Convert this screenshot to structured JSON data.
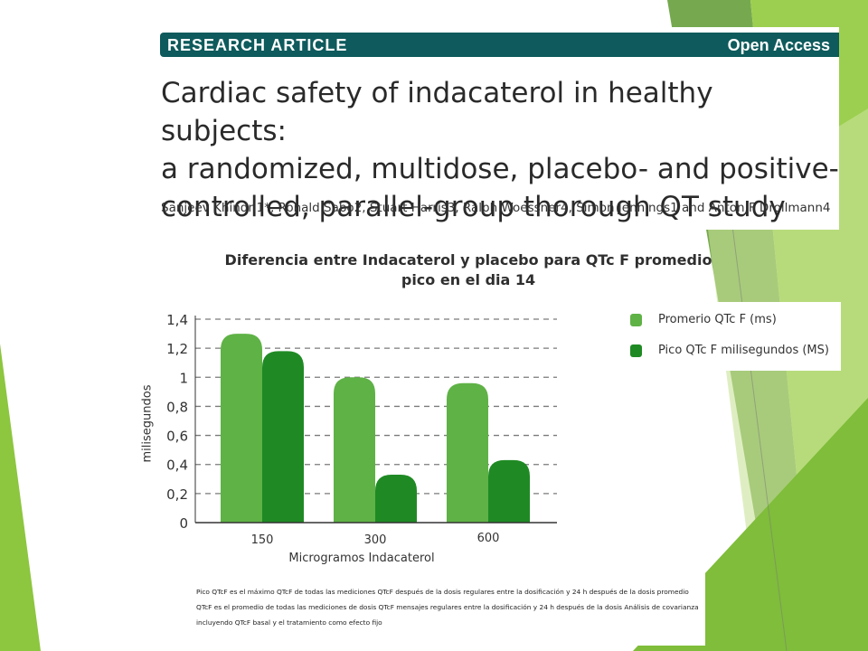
{
  "article": {
    "badge": "RESEARCH ARTICLE",
    "access": "Open Access",
    "title_lines": [
      "Cardiac safety of indacaterol in healthy subjects:",
      "a randomized, multidose, placebo- and positive-",
      "controlled, parallel-group thorough QT study"
    ],
    "authors": "Sanjeev Khindri1*, Ronald Sabo2, Stuart Harris3, Ralph Woessner4, Simon Jennings1 and Anton F Drollmann4",
    "header_color": "#0e5a5c"
  },
  "chart_data": {
    "type": "bar",
    "title_lines": [
      "Diferencia entre Indacaterol y placebo para QTc F promedio",
      "pico en el dia 14"
    ],
    "xlabel": "Microgramos Indacaterol",
    "ylabel": "milisegundos",
    "categories": [
      "150",
      "300",
      "600"
    ],
    "ylim": [
      0,
      1.4
    ],
    "yticks": [
      "0",
      "0,2",
      "0,4",
      "0,6",
      "0,8",
      "1",
      "1,2",
      "1,4"
    ],
    "grid": "dashed horizontal",
    "legend_position": "right",
    "series": [
      {
        "name": "Promerio QTc F (ms)",
        "values": [
          1.3,
          1.0,
          0.96
        ],
        "color": "#5fb246"
      },
      {
        "name": "Pico QTc F milisegundos (MS)",
        "values": [
          1.18,
          0.33,
          0.43
        ],
        "color": "#1f8a24"
      }
    ]
  },
  "footnote": [
    "Pico QTcF es el máximo QTcF de todas las mediciones QTcF después de la dosis regulares entre la dosificación y 24 h después de la dosis promedio",
    "QTcF es el promedio de todas las mediciones de dosis QTcF mensajes regulares entre la dosificación y 24 h después de la dosis Análisis de covarianza",
    "incluyendo QTcF basal y el tratamiento como efecto fijo"
  ],
  "decor": {
    "accent_light": "#8dc63f",
    "accent_dark": "#5b9a2e"
  }
}
